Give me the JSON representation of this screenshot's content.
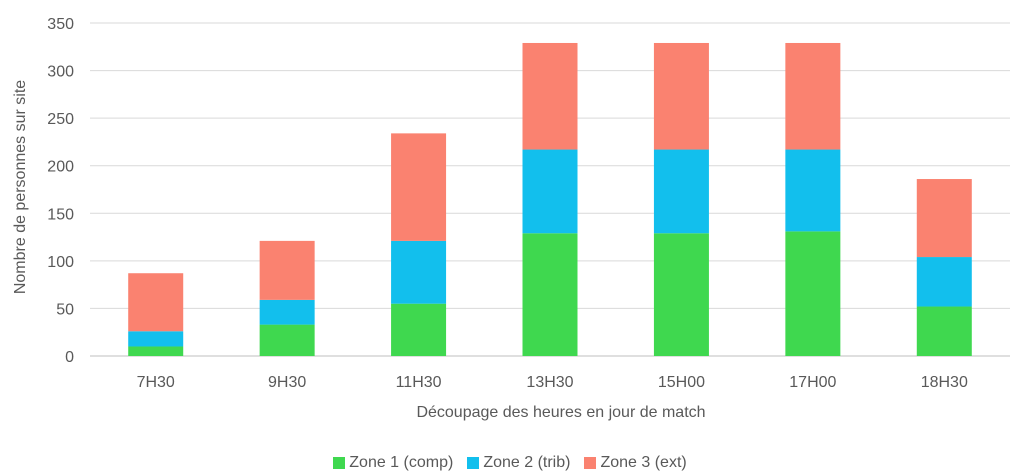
{
  "chart_data": {
    "type": "bar",
    "stacked": true,
    "title": "",
    "xlabel": "Découpage des heures en jour de match",
    "ylabel": "Nombre de personnes sur site",
    "ylim": [
      0,
      350
    ],
    "yticks": [
      "0",
      "50",
      "100",
      "150",
      "200",
      "250",
      "300",
      "350"
    ],
    "grid": true,
    "legend_position": "bottom",
    "categories": [
      "7H30",
      "9H30",
      "11H30",
      "13H30",
      "15H00",
      "17H00",
      "18H30"
    ],
    "series": [
      {
        "name": "Zone 1 (comp)",
        "color": "#3fd84f",
        "values": [
          10,
          33,
          55,
          129,
          129,
          131,
          52
        ]
      },
      {
        "name": "Zone 2 (trib)",
        "color": "#12bfed",
        "values": [
          16,
          26,
          66,
          88,
          88,
          86,
          52
        ]
      },
      {
        "name": "Zone 3 (ext)",
        "color": "#fa8270",
        "values": [
          61,
          62,
          113,
          112,
          112,
          112,
          82
        ]
      }
    ]
  }
}
